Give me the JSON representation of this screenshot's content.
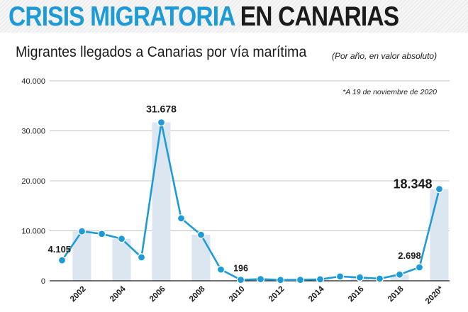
{
  "header": {
    "title_accent": "CRISIS MIGRATORIA",
    "title_rest": "EN CANARIAS"
  },
  "subtitle": "Migrantes llegados a Canarias por vía marítima",
  "unit_note": "(Por año, en valor absoluto)",
  "footnote": "*A 19 de noviembre de 2020",
  "colors": {
    "accent": "#1e9bd7",
    "dark": "#1b1b1b",
    "area": "#dbe6f1",
    "grid": "#b3b3b3"
  },
  "chart_data": {
    "type": "line",
    "title": "Migrantes llegados a Canarias por vía marítima",
    "xlabel": "",
    "ylabel": "",
    "x": [
      "2001",
      "2002",
      "2003",
      "2004",
      "2005",
      "2006",
      "2007",
      "2008",
      "2009",
      "2010",
      "2011",
      "2012",
      "2013",
      "2014",
      "2015",
      "2016",
      "2017",
      "2018",
      "2019",
      "2020*"
    ],
    "series": [
      {
        "values": [
          4105,
          9900,
          9400,
          8400,
          4700,
          31678,
          12500,
          9200,
          2250,
          196,
          340,
          170,
          200,
          300,
          870,
          670,
          420,
          1250,
          2698,
          18348
        ]
      }
    ],
    "x_tick_labels": [
      "2002",
      "2004",
      "2006",
      "2008",
      "2010",
      "2012",
      "2014",
      "2016",
      "2018",
      "2020*"
    ],
    "y_ticks": [
      "0",
      "10.000",
      "20.000",
      "30.000",
      "40.000"
    ],
    "ylim": [
      0,
      40000
    ],
    "grid": true,
    "data_labels": [
      {
        "x": "2001",
        "text": "4.105"
      },
      {
        "x": "2006",
        "text": "31.678"
      },
      {
        "x": "2010",
        "text": "196"
      },
      {
        "x": "2019",
        "text": "2.698"
      },
      {
        "x": "2020*",
        "text": "18.348"
      }
    ]
  }
}
